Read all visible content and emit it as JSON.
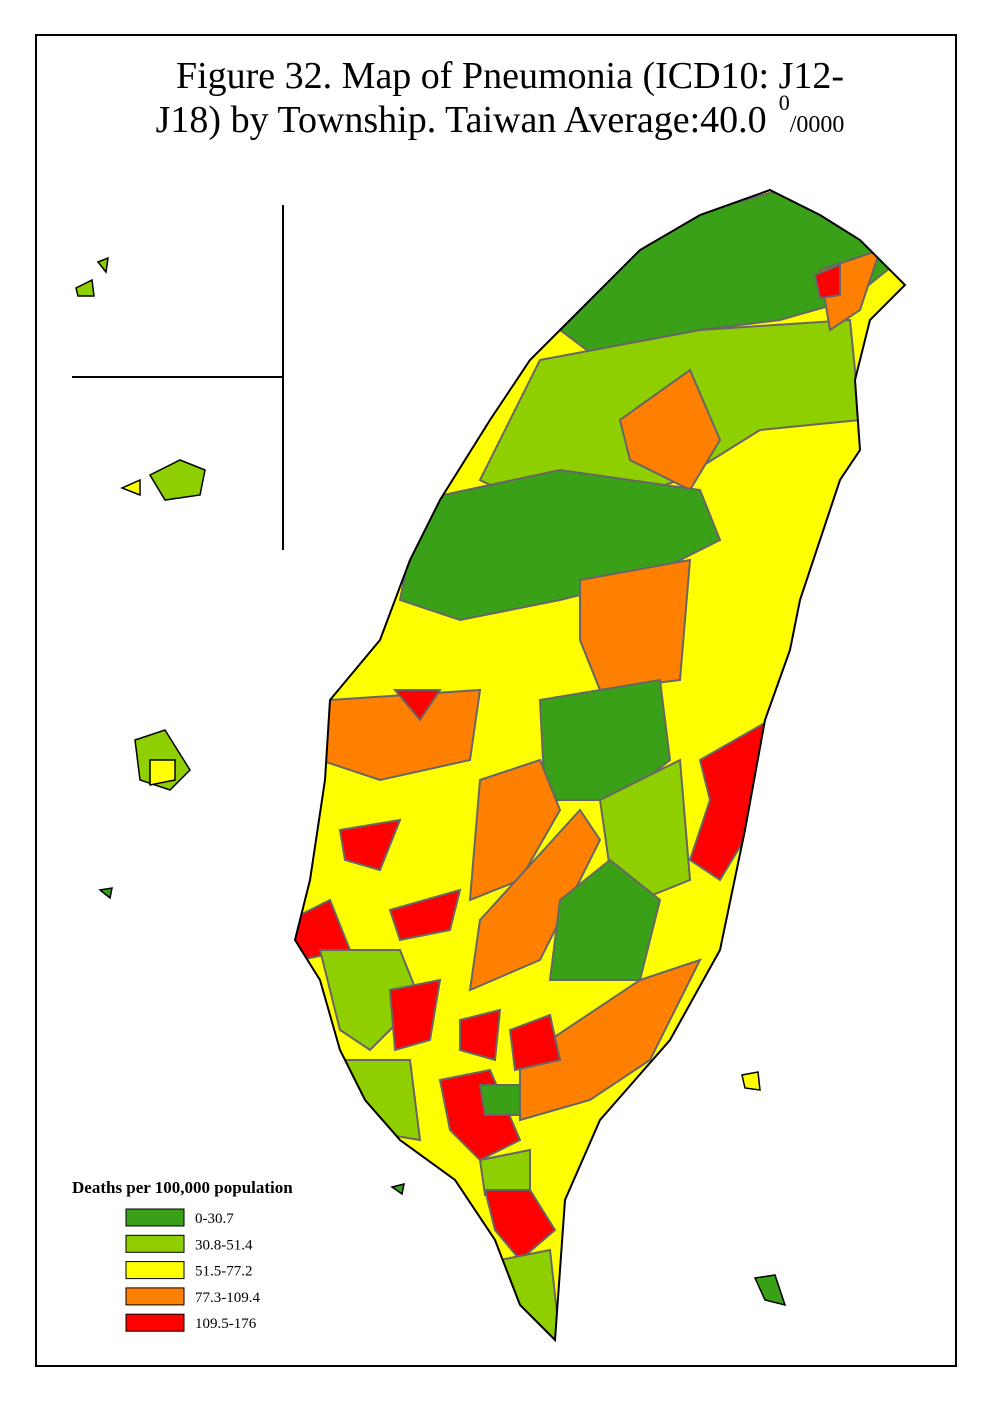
{
  "title": {
    "line1": "Figure 32. Map of Pneumonia (ICD10: J12-",
    "line2": "J18) by Township. Taiwan Average:40.0",
    "superscript": "0",
    "suffix": "/0000"
  },
  "legend": {
    "title": "Deaths per 100,000 population",
    "items": [
      {
        "label": "0-30.7",
        "color": "#3aa018"
      },
      {
        "label": "30.8-51.4",
        "color": "#8fcf00"
      },
      {
        "label": "51.5-77.2",
        "color": "#ffff00"
      },
      {
        "label": "77.3-109.4",
        "color": "#ff8000"
      },
      {
        "label": "109.5-176",
        "color": "#ff0000"
      }
    ]
  }
}
